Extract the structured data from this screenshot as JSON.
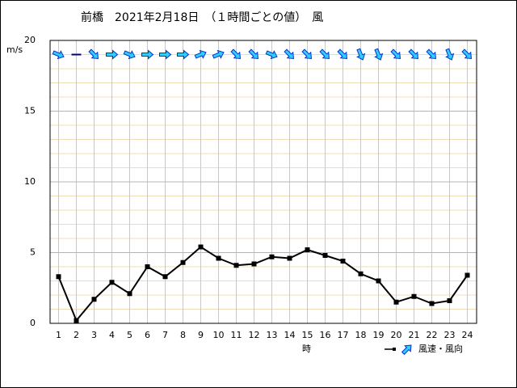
{
  "chart_data": {
    "type": "line",
    "title": "前橋　2021年2月18日　（１時間ごとの値）　風",
    "y_label": "m/s",
    "x_label": "時",
    "legend": "風速・風向",
    "categories": [
      "1",
      "2",
      "3",
      "4",
      "5",
      "6",
      "7",
      "8",
      "9",
      "10",
      "11",
      "12",
      "13",
      "14",
      "15",
      "16",
      "17",
      "18",
      "19",
      "20",
      "21",
      "22",
      "23",
      "24"
    ],
    "series": [
      {
        "name": "風速",
        "color": "#000000",
        "values": [
          3.3,
          0.2,
          1.7,
          2.9,
          2.1,
          4.0,
          3.3,
          4.3,
          5.4,
          4.6,
          4.1,
          4.2,
          4.7,
          4.6,
          5.2,
          4.8,
          4.4,
          3.5,
          3.0,
          1.5,
          1.9,
          1.4,
          1.6,
          3.4
        ]
      }
    ],
    "direction_degrees": [
      22.5,
      null,
      45,
      0,
      22.5,
      0,
      0,
      0,
      -22.5,
      -22.5,
      45,
      45,
      22.5,
      45,
      45,
      45,
      45,
      67.5,
      67.5,
      45,
      45,
      45,
      67.5,
      45
    ],
    "arrow_color": "#33ccff",
    "ylim": [
      0,
      20
    ],
    "yticks": [
      0,
      5,
      10,
      15,
      20
    ],
    "minor_step": 1,
    "grid": true
  }
}
